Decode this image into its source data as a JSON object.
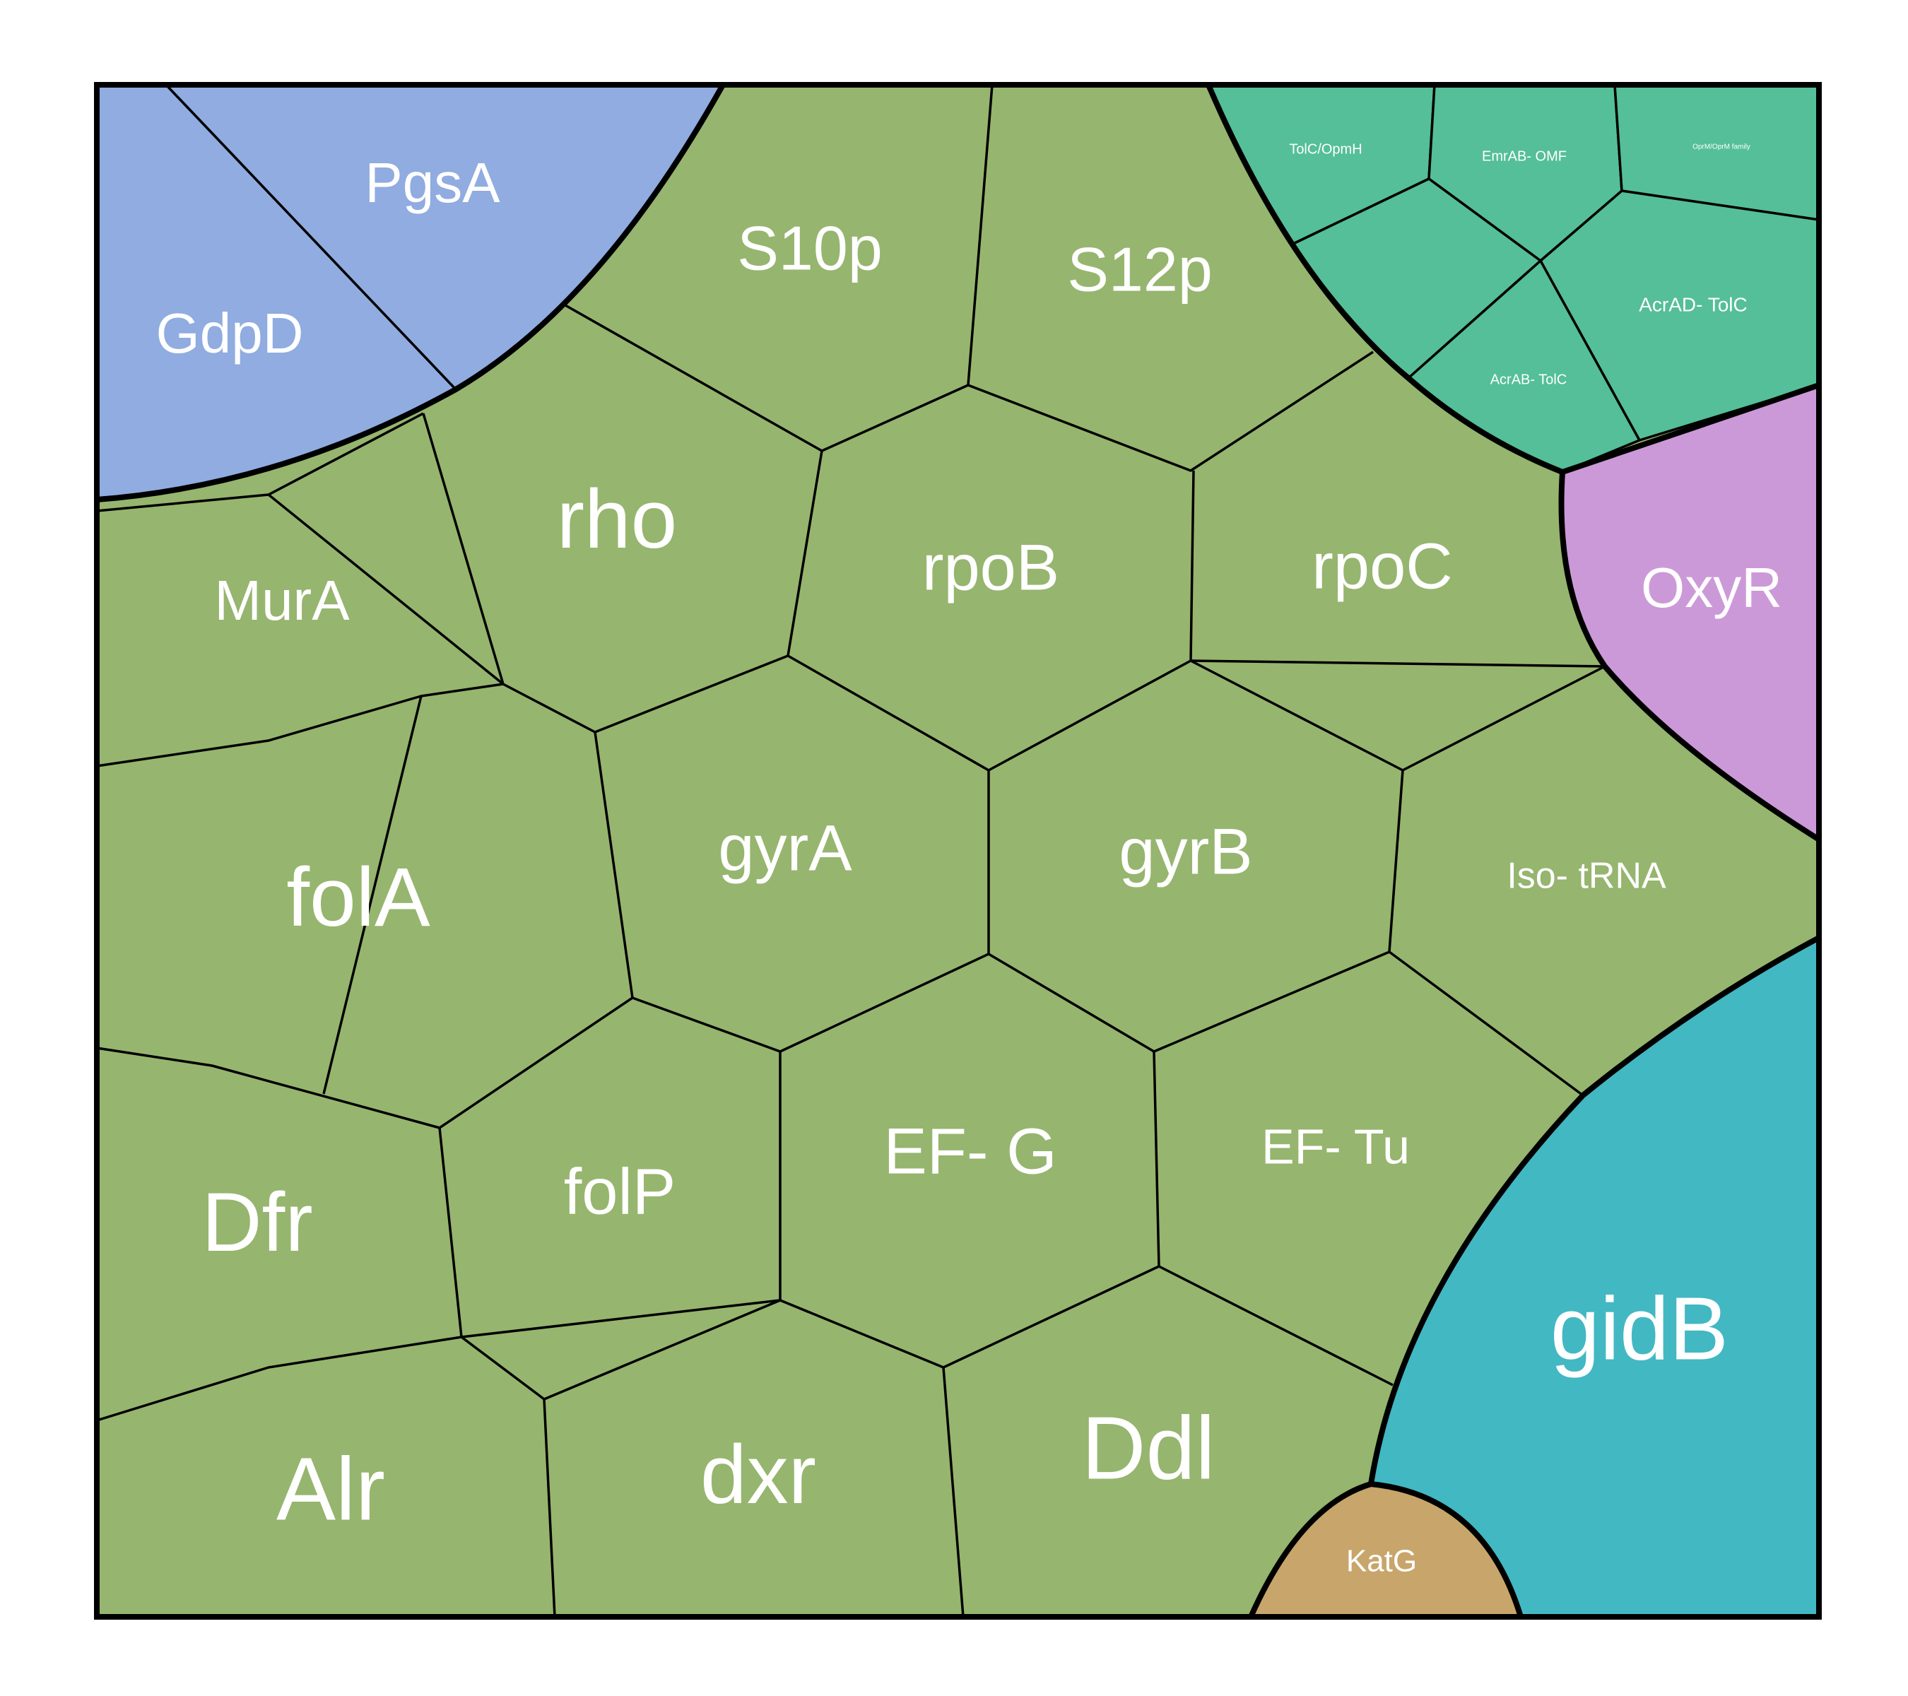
{
  "colors": {
    "green_group": "#96b56e",
    "blue_group": "#90ace0",
    "teal_group": "#54bf98",
    "purple_group": "#cc99d8",
    "cyan_group": "#42b8c3",
    "tan_group": "#c8a56a",
    "border": "#000000",
    "label": "#ffffff"
  },
  "cells": [
    {
      "id": "GdpD",
      "label": "GdpD",
      "group": "blue_group"
    },
    {
      "id": "PgsA",
      "label": "PgsA",
      "group": "blue_group"
    },
    {
      "id": "S10p",
      "label": "S10p",
      "group": "green_group"
    },
    {
      "id": "S12p",
      "label": "S12p",
      "group": "green_group"
    },
    {
      "id": "TolC_OpmH",
      "label": "TolC/OpmH",
      "group": "teal_group"
    },
    {
      "id": "EmrAB_OMF",
      "label": "EmrAB- OMF",
      "group": "teal_group"
    },
    {
      "id": "OprM_family",
      "label": "OprM/OprM family",
      "group": "teal_group"
    },
    {
      "id": "AcrAD_TolC",
      "label": "AcrAD- TolC",
      "group": "teal_group"
    },
    {
      "id": "AcrAB_TolC",
      "label": "AcrAB- TolC",
      "group": "teal_group"
    },
    {
      "id": "tiny_teal",
      "label": "",
      "group": "teal_group"
    },
    {
      "id": "rho",
      "label": "rho",
      "group": "green_group"
    },
    {
      "id": "rpoB",
      "label": "rpoB",
      "group": "green_group"
    },
    {
      "id": "rpoC",
      "label": "rpoC",
      "group": "green_group"
    },
    {
      "id": "OxyR",
      "label": "OxyR",
      "group": "purple_group"
    },
    {
      "id": "MurA",
      "label": "MurA",
      "group": "green_group"
    },
    {
      "id": "folA",
      "label": "folA",
      "group": "green_group"
    },
    {
      "id": "gyrA",
      "label": "gyrA",
      "group": "green_group"
    },
    {
      "id": "gyrB",
      "label": "gyrB",
      "group": "green_group"
    },
    {
      "id": "Iso_tRNA",
      "label": "Iso- tRNA",
      "group": "green_group"
    },
    {
      "id": "Dfr",
      "label": "Dfr",
      "group": "green_group"
    },
    {
      "id": "folP",
      "label": "folP",
      "group": "green_group"
    },
    {
      "id": "EF_G",
      "label": "EF- G",
      "group": "green_group"
    },
    {
      "id": "EF_Tu",
      "label": "EF- Tu",
      "group": "green_group"
    },
    {
      "id": "gidB",
      "label": "gidB",
      "group": "cyan_group"
    },
    {
      "id": "Alr",
      "label": "Alr",
      "group": "green_group"
    },
    {
      "id": "dxr",
      "label": "dxr",
      "group": "green_group"
    },
    {
      "id": "Ddl",
      "label": "Ddl",
      "group": "green_group"
    },
    {
      "id": "KatG",
      "label": "KatG",
      "group": "tan_group"
    }
  ]
}
